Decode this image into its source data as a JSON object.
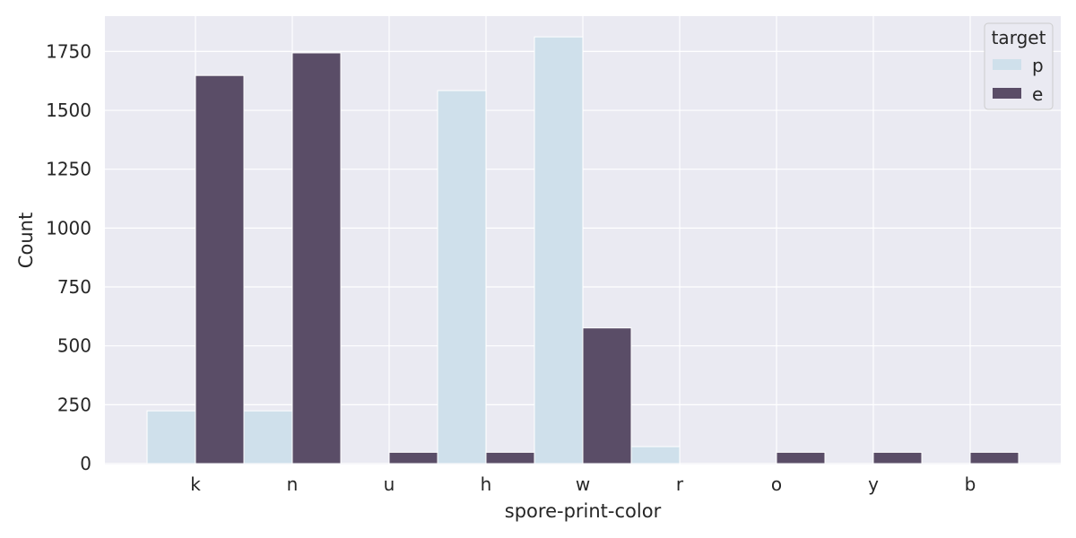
{
  "chart_data": {
    "type": "bar",
    "title": "",
    "xlabel": "spore-print-color",
    "ylabel": "Count",
    "categories": [
      "k",
      "n",
      "u",
      "h",
      "w",
      "r",
      "o",
      "y",
      "b"
    ],
    "series": [
      {
        "name": "p",
        "color": "#cfe0eb",
        "values": [
          224,
          224,
          0,
          1584,
          1812,
          72,
          0,
          0,
          0
        ]
      },
      {
        "name": "e",
        "color": "#5a4d67",
        "values": [
          1648,
          1744,
          48,
          48,
          576,
          0,
          48,
          48,
          48
        ]
      }
    ],
    "ylim": [
      0,
      1900
    ],
    "yticks": [
      0,
      250,
      500,
      750,
      1000,
      1250,
      1500,
      1750
    ],
    "grid": true,
    "legend": {
      "title": "target",
      "placement": "top-right"
    }
  }
}
